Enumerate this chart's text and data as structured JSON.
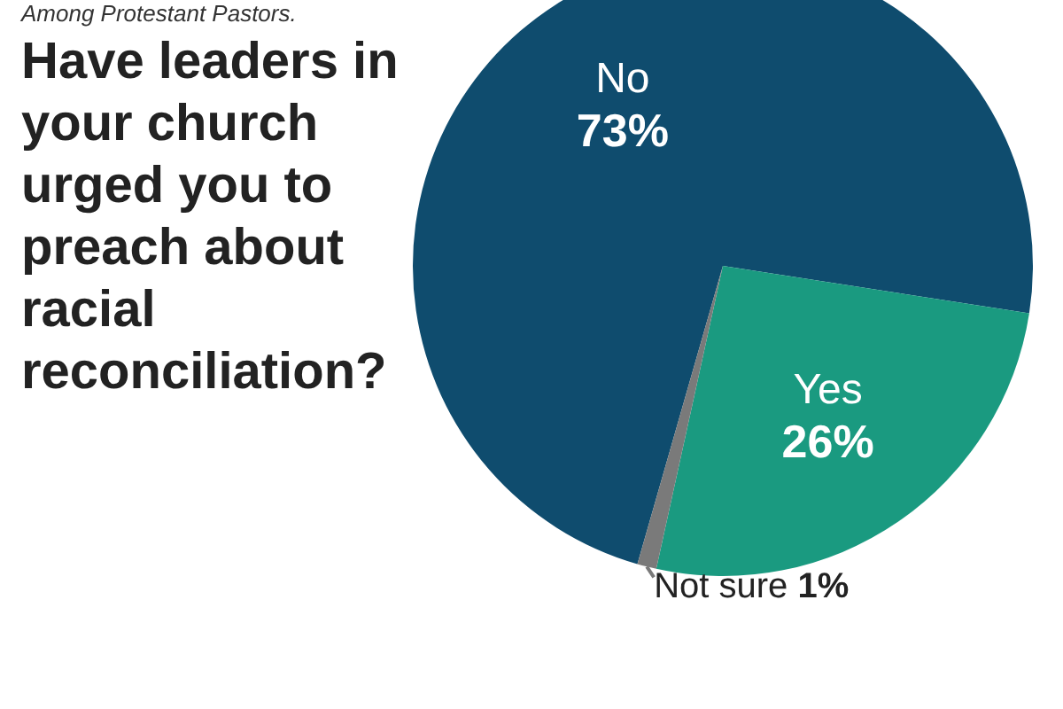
{
  "chart_data": {
    "type": "pie",
    "title": "Have leaders in your church urged you to preach about racial reconciliation?",
    "subtitle": "Among Protestant Pastors.",
    "categories": [
      "No",
      "Yes",
      "Not sure"
    ],
    "values": [
      73,
      26,
      1
    ],
    "value_labels": [
      "73%",
      "26%",
      "1%"
    ],
    "colors": [
      "#0f4c6e",
      "#1a9a80",
      "#7a7a7a"
    ],
    "legend": false
  }
}
